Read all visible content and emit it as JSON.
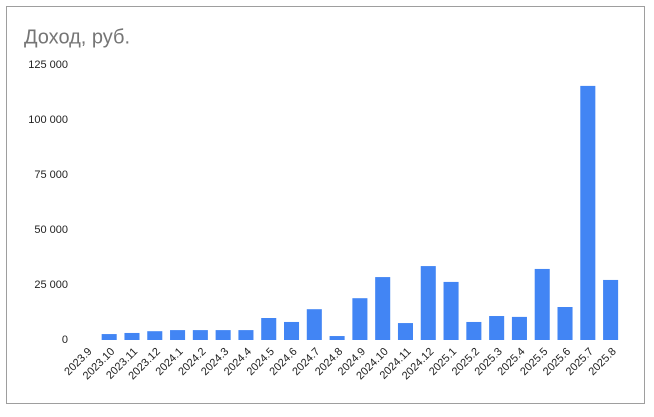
{
  "chart_data": {
    "type": "bar",
    "title": "Доход, руб.",
    "categories": [
      "2023.9",
      "2023.10",
      "2023.11",
      "2023.12",
      "2024.1",
      "2024.2",
      "2024.3",
      "2024.4",
      "2024.5",
      "2024.6",
      "2024.7",
      "2024.8",
      "2024.9",
      "2024.10",
      "2024.11",
      "2024.12",
      "2025.1",
      "2025.2",
      "2025.3",
      "2025.4",
      "2025.5",
      "2025.6",
      "2025.7",
      "2025.8"
    ],
    "values": [
      0,
      2700,
      3200,
      4000,
      4500,
      4500,
      4500,
      4500,
      10000,
      8200,
      14000,
      1800,
      19000,
      28600,
      7700,
      33600,
      26400,
      8200,
      10900,
      10500,
      32300,
      15000,
      115500,
      27300
    ],
    "color": "#4285f4",
    "ylim": [
      0,
      125000
    ],
    "yticks": [
      0,
      {
        "value": 25000,
        "label": "25 000"
      },
      {
        "value": 50000,
        "label": "50 000"
      },
      {
        "value": 75000,
        "label": "75 000"
      },
      {
        "value": 100000,
        "label": "100 000"
      },
      {
        "value": 125000,
        "label": "125 000"
      }
    ],
    "grid": false
  }
}
